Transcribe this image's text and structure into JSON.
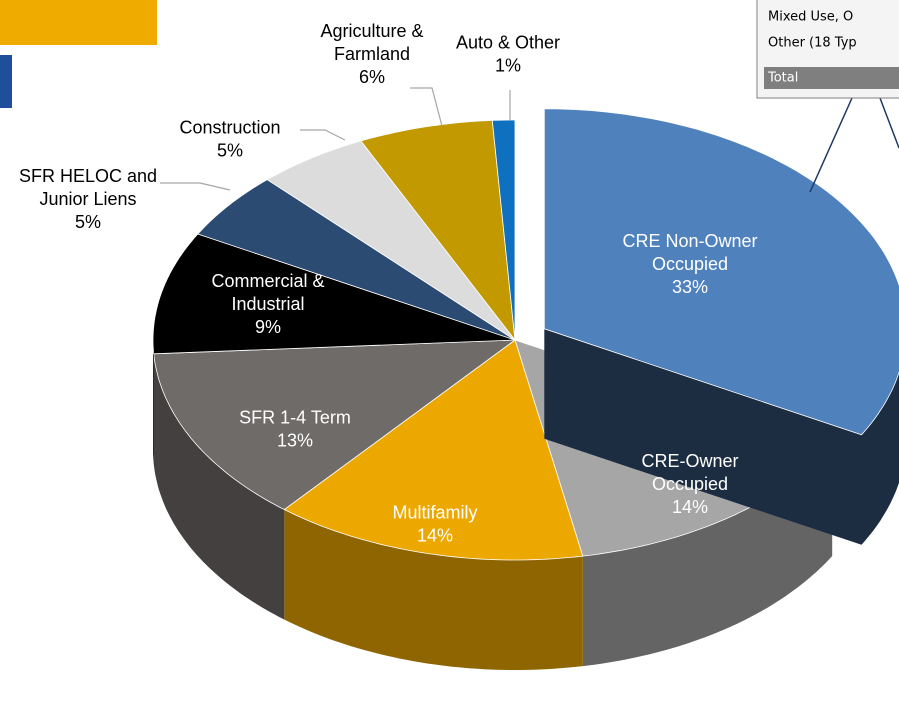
{
  "chart_data": {
    "type": "pie",
    "categories": [
      "CRE Non-Owner\nOccupied",
      "CRE-Owner\nOccupied",
      "Multifamily",
      "SFR 1-4 Term",
      "Commercial &\nIndustrial",
      "SFR HELOC and\nJunior Liens",
      "Construction",
      "Agriculture &\nFarmland",
      "Auto & Other"
    ],
    "values": [
      33,
      14,
      14,
      13,
      9,
      5,
      5,
      6,
      1
    ],
    "value_labels": [
      "33%",
      "14%",
      "14%",
      "13%",
      "9%",
      "5%",
      "5%",
      "6%",
      "1%"
    ],
    "colors": [
      "#4f81bd",
      "#a6a6a6",
      "#eda800",
      "#6f6b69",
      "#000000",
      "#2b4b73",
      "#dcdcdc",
      "#c29a00",
      "#1070c0"
    ],
    "exploded": [
      0
    ],
    "callout_rows": [
      "Mixed Use, O",
      "Other (18 Typ",
      "Total"
    ]
  }
}
